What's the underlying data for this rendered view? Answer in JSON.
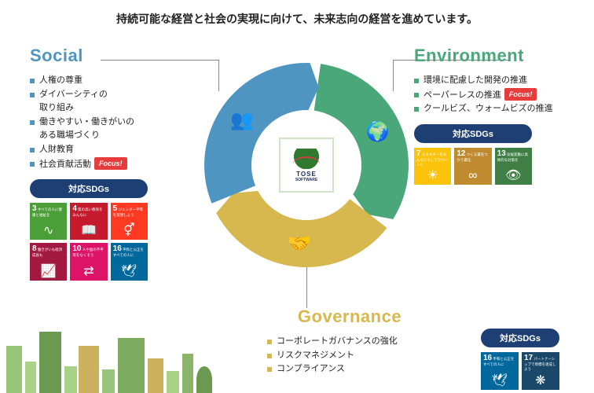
{
  "headline": "持続可能な経営と社会の実現に向けて、未来志向の経営を進めています。",
  "focus_label": "Focus!",
  "sdgs_header": "対応SDGs",
  "logo": {
    "line1": "TOSE",
    "line2": "SOFTWARE"
  },
  "colors": {
    "social": "#4e95c2",
    "environment": "#4aa779",
    "governance": "#d7b84e",
    "sdgs_header_bg": "#1d3f73",
    "focus_bg": "#e63c3c"
  },
  "sections": {
    "social": {
      "title": "Social",
      "items": [
        {
          "text": "人権の尊重"
        },
        {
          "text": "ダイバーシティの"
        },
        {
          "text_cont": "取り組み"
        },
        {
          "text": "働きやすい・働きがいの"
        },
        {
          "text_cont": "ある職場づくり"
        },
        {
          "text": "人財教育"
        },
        {
          "text": "社会貢献活動",
          "focus": true
        }
      ],
      "sdgs": [
        {
          "n": "3",
          "label": "すべての人に健康と福祉を",
          "color": "#4c9f38",
          "icon": "∿"
        },
        {
          "n": "4",
          "label": "質の高い教育をみんなに",
          "color": "#c5192d",
          "icon": "📖"
        },
        {
          "n": "5",
          "label": "ジェンダー平等を実現しよう",
          "color": "#ff3a21",
          "icon": "⚥"
        },
        {
          "n": "8",
          "label": "働きがいも経済成長も",
          "color": "#a21942",
          "icon": "📈"
        },
        {
          "n": "10",
          "label": "人や国の不平等をなくそう",
          "color": "#dd1367",
          "icon": "⇄"
        },
        {
          "n": "16",
          "label": "平和と公正をすべての人に",
          "color": "#00689d",
          "icon": "🕊"
        }
      ]
    },
    "environment": {
      "title": "Environment",
      "items": [
        {
          "text": "環境に配慮した開発の推進"
        },
        {
          "text": "ペーパーレスの推進",
          "focus": true
        },
        {
          "text": "クールビズ、ウォームビズの推進"
        }
      ],
      "sdgs": [
        {
          "n": "7",
          "label": "エネルギーをみんなにそしてクリーンに",
          "color": "#fcc30b",
          "icon": "☀"
        },
        {
          "n": "12",
          "label": "つくる責任つかう責任",
          "color": "#bf8b2e",
          "icon": "∞"
        },
        {
          "n": "13",
          "label": "気候変動に具体的な対策を",
          "color": "#3f7e44",
          "icon": "👁"
        }
      ]
    },
    "governance": {
      "title": "Governance",
      "items": [
        {
          "text": "コーポレートガバナンスの強化"
        },
        {
          "text": "リスクマネジメント"
        },
        {
          "text": "コンプライアンス"
        }
      ],
      "sdgs": [
        {
          "n": "16",
          "label": "平和と公正をすべての人に",
          "color": "#00689d",
          "icon": "🕊"
        },
        {
          "n": "17",
          "label": "パートナーシップで目標を達成しよう",
          "color": "#19486a",
          "icon": "❋"
        }
      ]
    }
  },
  "ring": {
    "outer_r": 130,
    "inner_r": 70,
    "segments": [
      {
        "key": "environment",
        "start": -85,
        "end": 35,
        "color": "#4aa779",
        "icon": "🌍"
      },
      {
        "key": "governance",
        "start": 35,
        "end": 155,
        "color": "#d7b84e",
        "icon": "🤝"
      },
      {
        "key": "social",
        "start": 155,
        "end": 275,
        "color": "#4e95c2",
        "icon": "👥"
      }
    ]
  }
}
